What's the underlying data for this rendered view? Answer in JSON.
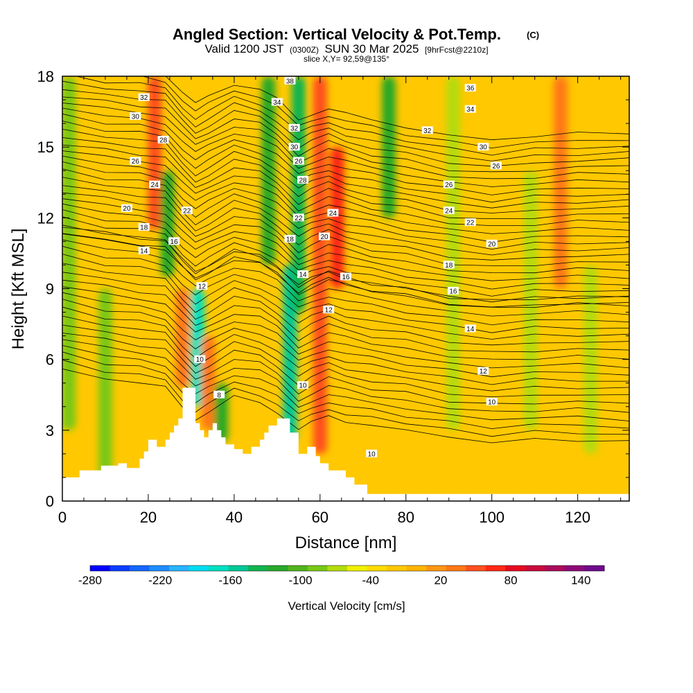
{
  "header": {
    "title": "Angled Section: Vertical Velocity & Pot.Temp.",
    "title_unit": "(C)",
    "valid_prefix": "Valid 1200 JST",
    "valid_zulu": "(0300Z)",
    "valid_date": "SUN 30 Mar 2025",
    "forecast": "[9hrFcst@2210z]",
    "slice": "slice X,Y= 92,59@135°"
  },
  "chart_data": {
    "type": "heatmap",
    "xlabel": "Distance [nm]",
    "ylabel": "Height [Kft MSL]",
    "xlim": [
      0,
      132
    ],
    "ylim": [
      0,
      18
    ],
    "x_ticks": [
      0,
      20,
      40,
      60,
      80,
      100,
      120
    ],
    "y_ticks": [
      0,
      3,
      6,
      9,
      12,
      15,
      18
    ],
    "colorbar": {
      "title": "Vertical Velocity [cm/s]",
      "min": -280,
      "max": 160,
      "step": 20,
      "tick_values": [
        -280,
        -220,
        -160,
        -100,
        -40,
        20,
        80,
        140
      ],
      "tick_labels": [
        "-280",
        "-220",
        "-160",
        "-100",
        "-40",
        "20",
        "80",
        "140"
      ],
      "colors": [
        "#0000ff",
        "#0a3cff",
        "#1466ff",
        "#1e8cff",
        "#28b4ff",
        "#00dcf0",
        "#00e0c0",
        "#00c896",
        "#10b450",
        "#28a828",
        "#50b41e",
        "#78c814",
        "#b4dc0a",
        "#f0f000",
        "#ffdc00",
        "#ffc800",
        "#ffb400",
        "#ff9614",
        "#ff7814",
        "#ff501e",
        "#ff2814",
        "#e60a1e",
        "#c80a3c",
        "#aa0a5a",
        "#8c0a78",
        "#6e0a8c"
      ]
    },
    "background_velocity_cms": 20,
    "vertical_velocity_features": [
      {
        "x": 1.5,
        "h_bottom": 3,
        "h_top": 18,
        "w_cms": -60
      },
      {
        "x": 10,
        "h_bottom": 1,
        "h_top": 9,
        "w_cms": -60
      },
      {
        "x": 21.5,
        "h_bottom": 11.5,
        "h_top": 18,
        "w_cms": 100
      },
      {
        "x": 24.5,
        "h_bottom": 9.5,
        "h_top": 14,
        "w_cms": -100
      },
      {
        "x": 28,
        "h_bottom": 4.8,
        "h_top": 9,
        "w_cms": 80
      },
      {
        "x": 31.5,
        "h_bottom": 4,
        "h_top": 9,
        "w_cms": -150
      },
      {
        "x": 34,
        "h_bottom": 3,
        "h_top": 7,
        "w_cms": 80
      },
      {
        "x": 37,
        "h_bottom": 2.5,
        "h_top": 5,
        "w_cms": -90
      },
      {
        "x": 48,
        "h_bottom": 10,
        "h_top": 18,
        "w_cms": -100
      },
      {
        "x": 53,
        "h_bottom": 2.5,
        "h_top": 10,
        "w_cms": -140
      },
      {
        "x": 55,
        "h_bottom": 8,
        "h_top": 18,
        "w_cms": -120
      },
      {
        "x": 60,
        "h_bottom": 2,
        "h_top": 18,
        "w_cms": 100
      },
      {
        "x": 64,
        "h_bottom": 9,
        "h_top": 15,
        "w_cms": 120
      },
      {
        "x": 76,
        "h_bottom": 12,
        "h_top": 18,
        "w_cms": -100
      },
      {
        "x": 91,
        "h_bottom": 3,
        "h_top": 18,
        "w_cms": -40
      },
      {
        "x": 109,
        "h_bottom": 3,
        "h_top": 14,
        "w_cms": -40
      },
      {
        "x": 116,
        "h_bottom": 9,
        "h_top": 18,
        "w_cms": 80
      },
      {
        "x": 123,
        "h_bottom": 2,
        "h_top": 10,
        "w_cms": -40
      }
    ],
    "terrain_kft": [
      [
        0,
        1.0
      ],
      [
        4,
        1.0
      ],
      [
        4,
        1.3
      ],
      [
        9,
        1.3
      ],
      [
        9,
        1.5
      ],
      [
        13,
        1.5
      ],
      [
        13,
        1.6
      ],
      [
        15,
        1.6
      ],
      [
        15,
        1.4
      ],
      [
        18,
        1.4
      ],
      [
        18,
        1.8
      ],
      [
        19,
        1.8
      ],
      [
        19,
        2.1
      ],
      [
        20,
        2.1
      ],
      [
        20,
        2.6
      ],
      [
        22,
        2.6
      ],
      [
        22,
        2.3
      ],
      [
        24,
        2.3
      ],
      [
        24,
        2.6
      ],
      [
        25,
        2.6
      ],
      [
        25,
        2.9
      ],
      [
        26,
        2.9
      ],
      [
        26,
        3.2
      ],
      [
        27,
        3.2
      ],
      [
        27,
        3.5
      ],
      [
        28,
        3.5
      ],
      [
        28,
        4.8
      ],
      [
        31,
        4.8
      ],
      [
        31,
        3.3
      ],
      [
        32,
        3.3
      ],
      [
        32,
        3.0
      ],
      [
        33,
        3.0
      ],
      [
        33,
        2.7
      ],
      [
        34,
        2.7
      ],
      [
        34,
        3.0
      ],
      [
        35,
        3.0
      ],
      [
        35,
        3.3
      ],
      [
        36,
        3.3
      ],
      [
        36,
        3.0
      ],
      [
        37,
        3.0
      ],
      [
        37,
        2.7
      ],
      [
        38,
        2.7
      ],
      [
        38,
        2.4
      ],
      [
        40,
        2.4
      ],
      [
        40,
        2.2
      ],
      [
        42,
        2.2
      ],
      [
        42,
        2.0
      ],
      [
        44,
        2.0
      ],
      [
        44,
        2.3
      ],
      [
        46,
        2.3
      ],
      [
        46,
        2.6
      ],
      [
        47,
        2.6
      ],
      [
        47,
        2.9
      ],
      [
        48,
        2.9
      ],
      [
        48,
        3.2
      ],
      [
        50,
        3.2
      ],
      [
        50,
        3.5
      ],
      [
        53,
        3.5
      ],
      [
        53,
        2.9
      ],
      [
        55,
        2.9
      ],
      [
        55,
        2.0
      ],
      [
        57,
        2.0
      ],
      [
        57,
        2.3
      ],
      [
        59,
        2.3
      ],
      [
        59,
        1.9
      ],
      [
        60,
        1.9
      ],
      [
        60,
        1.6
      ],
      [
        62,
        1.6
      ],
      [
        62,
        1.3
      ],
      [
        66,
        1.3
      ],
      [
        66,
        1.0
      ],
      [
        68,
        1.0
      ],
      [
        68,
        0.7
      ],
      [
        71,
        0.7
      ],
      [
        71,
        0.3
      ],
      [
        132,
        0.3
      ]
    ],
    "isentropes_deg_c": {
      "base_height_kft": [
        [
          0,
          5.6
        ],
        [
          10,
          5.2
        ],
        [
          18,
          5.0
        ],
        [
          24,
          4.8
        ],
        [
          28,
          4.0
        ],
        [
          31,
          3.5
        ],
        [
          34,
          3.8
        ],
        [
          40,
          4.4
        ],
        [
          46,
          4.2
        ],
        [
          50,
          3.8
        ],
        [
          55,
          3.0
        ],
        [
          58,
          3.3
        ],
        [
          62,
          3.6
        ],
        [
          66,
          3.4
        ],
        [
          72,
          3.2
        ],
        [
          80,
          3.0
        ],
        [
          90,
          2.7
        ],
        [
          100,
          2.5
        ],
        [
          110,
          2.6
        ],
        [
          120,
          2.6
        ],
        [
          132,
          2.5
        ]
      ],
      "spacing_low_kft": 0.32,
      "spacing_high_kft": 0.29,
      "count": 46,
      "labels": [
        {
          "text": "8",
          "x": 36.5,
          "y": 4.5
        },
        {
          "text": "10",
          "x": 32,
          "y": 6.0
        },
        {
          "text": "10",
          "x": 56,
          "y": 4.9
        },
        {
          "text": "10",
          "x": 72,
          "y": 2.0
        },
        {
          "text": "10",
          "x": 100,
          "y": 4.2
        },
        {
          "text": "12",
          "x": 32.5,
          "y": 9.1
        },
        {
          "text": "12",
          "x": 62,
          "y": 8.1
        },
        {
          "text": "12",
          "x": 98,
          "y": 5.5
        },
        {
          "text": "14",
          "x": 19,
          "y": 10.6
        },
        {
          "text": "14",
          "x": 56,
          "y": 9.6
        },
        {
          "text": "14",
          "x": 95,
          "y": 7.3
        },
        {
          "text": "16",
          "x": 26,
          "y": 11.0
        },
        {
          "text": "16",
          "x": 66,
          "y": 9.5
        },
        {
          "text": "16",
          "x": 91,
          "y": 8.9
        },
        {
          "text": "18",
          "x": 19,
          "y": 11.6
        },
        {
          "text": "18",
          "x": 53,
          "y": 11.1
        },
        {
          "text": "18",
          "x": 90,
          "y": 10.0
        },
        {
          "text": "20",
          "x": 15,
          "y": 12.4
        },
        {
          "text": "20",
          "x": 61,
          "y": 11.2
        },
        {
          "text": "20",
          "x": 100,
          "y": 10.9
        },
        {
          "text": "22",
          "x": 29,
          "y": 12.3
        },
        {
          "text": "22",
          "x": 55,
          "y": 12.0
        },
        {
          "text": "22",
          "x": 95,
          "y": 11.8
        },
        {
          "text": "24",
          "x": 21.5,
          "y": 13.4
        },
        {
          "text": "24",
          "x": 63,
          "y": 12.2
        },
        {
          "text": "24",
          "x": 90,
          "y": 12.3
        },
        {
          "text": "26",
          "x": 17,
          "y": 14.4
        },
        {
          "text": "26",
          "x": 55,
          "y": 14.4
        },
        {
          "text": "26",
          "x": 101,
          "y": 14.2
        },
        {
          "text": "26",
          "x": 90,
          "y": 13.4
        },
        {
          "text": "28",
          "x": 23.5,
          "y": 15.3
        },
        {
          "text": "28",
          "x": 56,
          "y": 13.6
        },
        {
          "text": "30",
          "x": 17,
          "y": 16.3
        },
        {
          "text": "30",
          "x": 54,
          "y": 15.0
        },
        {
          "text": "30",
          "x": 98,
          "y": 15.0
        },
        {
          "text": "32",
          "x": 19,
          "y": 17.1
        },
        {
          "text": "32",
          "x": 54,
          "y": 15.8
        },
        {
          "text": "32",
          "x": 85,
          "y": 15.7
        },
        {
          "text": "34",
          "x": 50,
          "y": 16.9
        },
        {
          "text": "34",
          "x": 95,
          "y": 16.6
        },
        {
          "text": "36",
          "x": 95,
          "y": 17.5
        },
        {
          "text": "38",
          "x": 53,
          "y": 17.8
        }
      ]
    }
  }
}
